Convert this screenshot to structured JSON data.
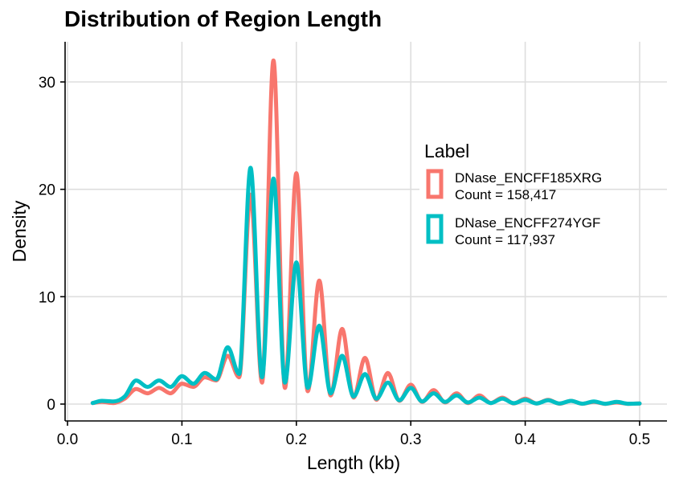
{
  "chart_data": {
    "type": "line",
    "title": "Distribution of Region Length",
    "xlabel": "Length (kb)",
    "ylabel": "Density",
    "xlim": [
      0.0,
      0.5
    ],
    "ylim": [
      0,
      32
    ],
    "x_ticks": [
      0.0,
      0.1,
      0.2,
      0.3,
      0.4,
      0.5
    ],
    "x_tick_labels": [
      "0.0",
      "0.1",
      "0.2",
      "0.3",
      "0.4",
      "0.5"
    ],
    "y_ticks": [
      0,
      10,
      20,
      30
    ],
    "y_tick_labels": [
      "0",
      "10",
      "20",
      "30"
    ],
    "grid": true,
    "legend": {
      "title": "Label",
      "position": "right",
      "entries": [
        {
          "name": "DNase_ENCFF185XRG",
          "sub": "Count = 158,417",
          "color": "#F8766D"
        },
        {
          "name": "DNase_ENCFF274YGF",
          "sub": "Count = 117,937",
          "color": "#00BFC4"
        }
      ]
    },
    "series": [
      {
        "name": "DNase_ENCFF185XRG",
        "color": "#F8766D",
        "x": [
          0.022,
          0.03,
          0.04,
          0.05,
          0.06,
          0.07,
          0.08,
          0.09,
          0.1,
          0.11,
          0.12,
          0.13,
          0.14,
          0.15,
          0.16,
          0.17,
          0.18,
          0.19,
          0.2,
          0.21,
          0.22,
          0.23,
          0.24,
          0.25,
          0.26,
          0.27,
          0.28,
          0.29,
          0.3,
          0.31,
          0.32,
          0.33,
          0.34,
          0.35,
          0.36,
          0.37,
          0.38,
          0.39,
          0.4,
          0.41,
          0.42,
          0.43,
          0.44,
          0.45,
          0.46,
          0.47,
          0.48,
          0.49,
          0.5
        ],
        "y": [
          0.1,
          0.2,
          0.1,
          0.5,
          1.4,
          1.0,
          1.5,
          1.0,
          1.9,
          1.6,
          2.5,
          2.2,
          4.5,
          2.5,
          19.5,
          2.0,
          32.0,
          1.5,
          21.5,
          1.2,
          11.5,
          0.8,
          7.0,
          0.6,
          4.3,
          0.4,
          2.9,
          0.3,
          1.8,
          0.2,
          1.3,
          0.15,
          1.0,
          0.1,
          0.8,
          0.1,
          0.6,
          0.05,
          0.5,
          0.05,
          0.4,
          0.03,
          0.3,
          0.03,
          0.2,
          0.02,
          0.15,
          0.02,
          0.05
        ]
      },
      {
        "name": "DNase_ENCFF274YGF",
        "color": "#00BFC4",
        "x": [
          0.022,
          0.03,
          0.04,
          0.05,
          0.06,
          0.07,
          0.08,
          0.09,
          0.1,
          0.11,
          0.12,
          0.13,
          0.14,
          0.15,
          0.16,
          0.17,
          0.18,
          0.19,
          0.2,
          0.21,
          0.22,
          0.23,
          0.24,
          0.25,
          0.26,
          0.27,
          0.28,
          0.29,
          0.3,
          0.31,
          0.32,
          0.33,
          0.34,
          0.35,
          0.36,
          0.37,
          0.38,
          0.39,
          0.4,
          0.41,
          0.42,
          0.43,
          0.44,
          0.45,
          0.46,
          0.47,
          0.48,
          0.49,
          0.5
        ],
        "y": [
          0.1,
          0.3,
          0.25,
          0.7,
          2.2,
          1.6,
          2.2,
          1.6,
          2.6,
          1.9,
          2.9,
          2.3,
          5.3,
          2.8,
          22.0,
          2.5,
          21.0,
          2.0,
          13.2,
          1.5,
          7.3,
          1.0,
          4.5,
          0.7,
          2.8,
          0.5,
          2.0,
          0.35,
          1.5,
          0.25,
          1.0,
          0.2,
          0.8,
          0.15,
          0.6,
          0.1,
          0.5,
          0.08,
          0.4,
          0.06,
          0.35,
          0.05,
          0.3,
          0.04,
          0.25,
          0.03,
          0.2,
          0.03,
          0.05
        ]
      }
    ]
  }
}
